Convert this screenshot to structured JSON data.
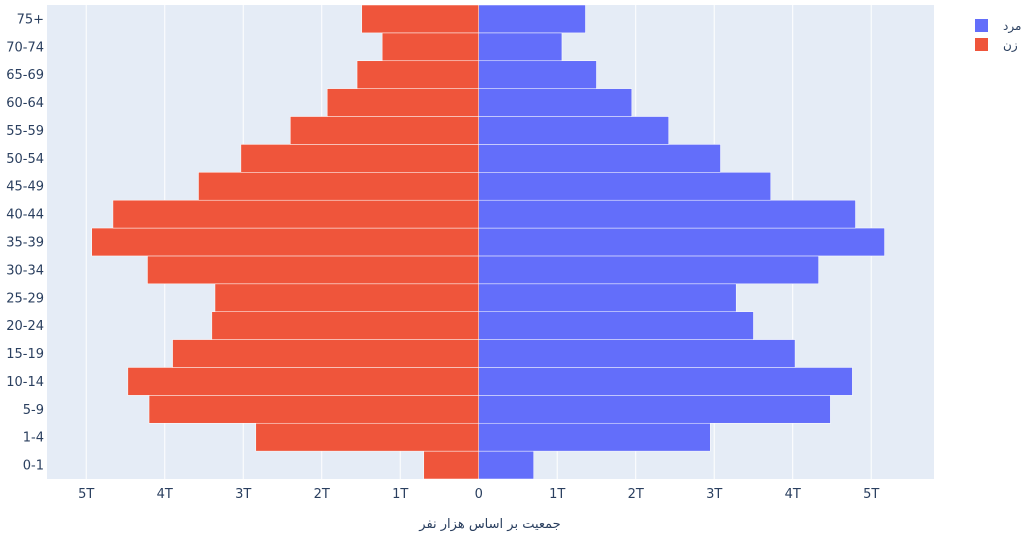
{
  "chart_data": {
    "type": "bar",
    "orientation": "horizontal",
    "barmode": "overlay",
    "categories": [
      "0-1",
      "1-4",
      "5-9",
      "10-14",
      "15-19",
      "20-24",
      "25-29",
      "30-34",
      "35-39",
      "40-44",
      "45-49",
      "50-54",
      "55-59",
      "60-64",
      "65-69",
      "70-74",
      "75+"
    ],
    "series": [
      {
        "name": "مرد",
        "color": "#636efa",
        "values": [
          0.7,
          2.95,
          4.48,
          4.76,
          4.03,
          3.5,
          3.28,
          4.33,
          5.17,
          4.8,
          3.72,
          3.08,
          2.42,
          1.95,
          1.5,
          1.06,
          1.36
        ]
      },
      {
        "name": "زن",
        "color": "#ef553b",
        "values": [
          -0.7,
          -2.84,
          -4.2,
          -4.47,
          -3.9,
          -3.4,
          -3.36,
          -4.22,
          -4.93,
          -4.66,
          -3.57,
          -3.03,
          -2.4,
          -1.93,
          -1.55,
          -1.23,
          -1.49
        ]
      }
    ],
    "xlim": [
      -5.5,
      5.8
    ],
    "xticks": [
      -5,
      -4,
      -3,
      -2,
      -1,
      0,
      1,
      2,
      3,
      4,
      5
    ],
    "xtick_labels": [
      "5T",
      "4T",
      "3T",
      "2T",
      "1T",
      "0",
      "1T",
      "2T",
      "3T",
      "4T",
      "5T"
    ],
    "xlabel": "جمعیت بر اساس  هزار نفر",
    "ylabel": "",
    "grid": true,
    "legend_position": "top-right",
    "plot_background": "#e5ecf6"
  }
}
